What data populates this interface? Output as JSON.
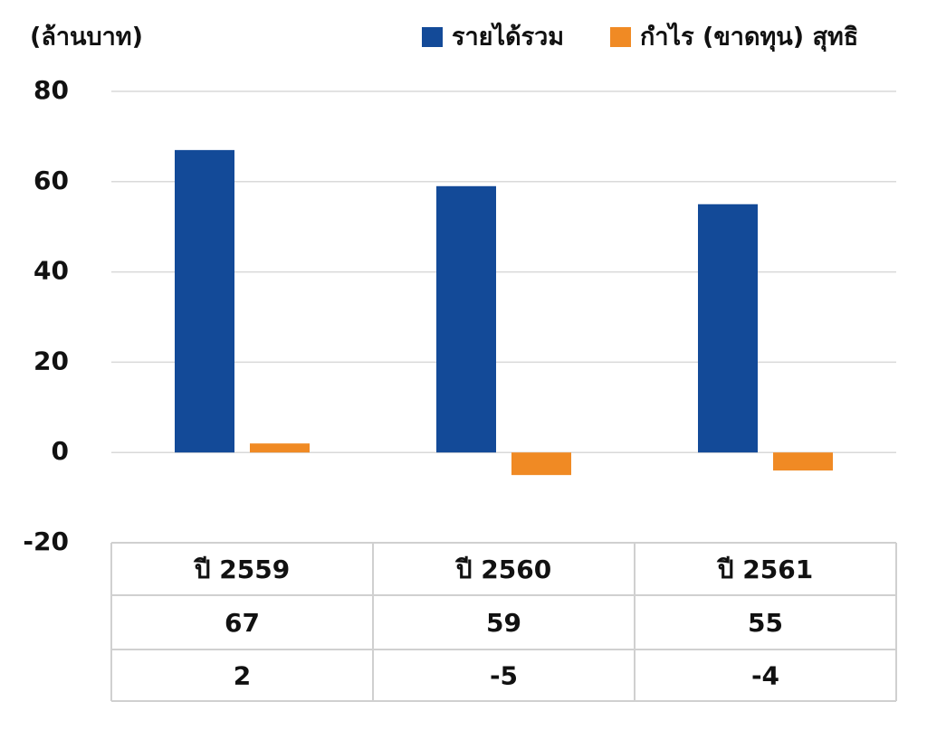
{
  "chart_data": {
    "type": "bar",
    "ylabel": "(ล้านบาท)",
    "categories": [
      "ปี 2559",
      "ปี 2560",
      "ปี 2561"
    ],
    "series": [
      {
        "name": "รายได้รวม",
        "color": "#134a98",
        "values": [
          67,
          59,
          55
        ]
      },
      {
        "name": "กำไร (ขาดทุน) สุทธิ",
        "color": "#f08a24",
        "values": [
          2,
          -5,
          -4
        ]
      }
    ],
    "ylim": [
      -20,
      80
    ],
    "yticks": [
      -20,
      0,
      20,
      40,
      60,
      80
    ],
    "grid": true,
    "legend": "top"
  }
}
